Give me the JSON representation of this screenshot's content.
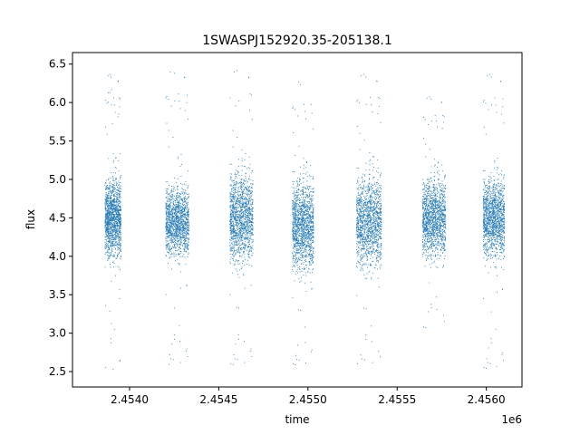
{
  "chart_data": {
    "type": "scatter",
    "title": "1SWASPJ152920.35-205138.1",
    "xlabel": "time",
    "ylabel": "flux",
    "x_offset_label": "1e6",
    "xlim": [
      2.45368,
      2.4562
    ],
    "ylim": [
      2.3,
      6.65
    ],
    "x_ticks": [
      2.454,
      2.4545,
      2.455,
      2.4555,
      2.456
    ],
    "x_tick_labels": [
      "2.4540",
      "2.4545",
      "2.4550",
      "2.4555",
      "2.4560"
    ],
    "y_ticks": [
      2.5,
      3.0,
      3.5,
      4.0,
      4.5,
      5.0,
      5.5,
      6.0,
      6.5
    ],
    "y_tick_labels": [
      "2.5",
      "3.0",
      "3.5",
      "4.0",
      "4.5",
      "5.0",
      "5.5",
      "6.0",
      "6.5"
    ],
    "grid": false,
    "marker_color": "#1f77b4",
    "x_unit_scale": 1000000,
    "series": [
      {
        "observing_seasons": [
          {
            "x_start": 2.45386,
            "x_end": 2.45395,
            "center": 4.5,
            "spread": 0.35,
            "low_outlier": 2.45,
            "high_outlier": 6.4
          },
          {
            "x_start": 2.4542,
            "x_end": 2.45433,
            "center": 4.45,
            "spread": 0.3,
            "low_outlier": 2.5,
            "high_outlier": 6.45
          },
          {
            "x_start": 2.45456,
            "x_end": 2.45469,
            "center": 4.5,
            "spread": 0.4,
            "low_outlier": 2.5,
            "high_outlier": 6.45
          },
          {
            "x_start": 2.45491,
            "x_end": 2.45503,
            "center": 4.4,
            "spread": 0.4,
            "low_outlier": 2.5,
            "high_outlier": 6.3
          },
          {
            "x_start": 2.45527,
            "x_end": 2.45541,
            "center": 4.45,
            "spread": 0.4,
            "low_outlier": 2.5,
            "high_outlier": 6.4
          },
          {
            "x_start": 2.45564,
            "x_end": 2.45577,
            "center": 4.5,
            "spread": 0.35,
            "low_outlier": 3.0,
            "high_outlier": 6.1
          },
          {
            "x_start": 2.45598,
            "x_end": 2.4561,
            "center": 4.5,
            "spread": 0.35,
            "low_outlier": 2.45,
            "high_outlier": 6.4
          }
        ]
      }
    ]
  }
}
